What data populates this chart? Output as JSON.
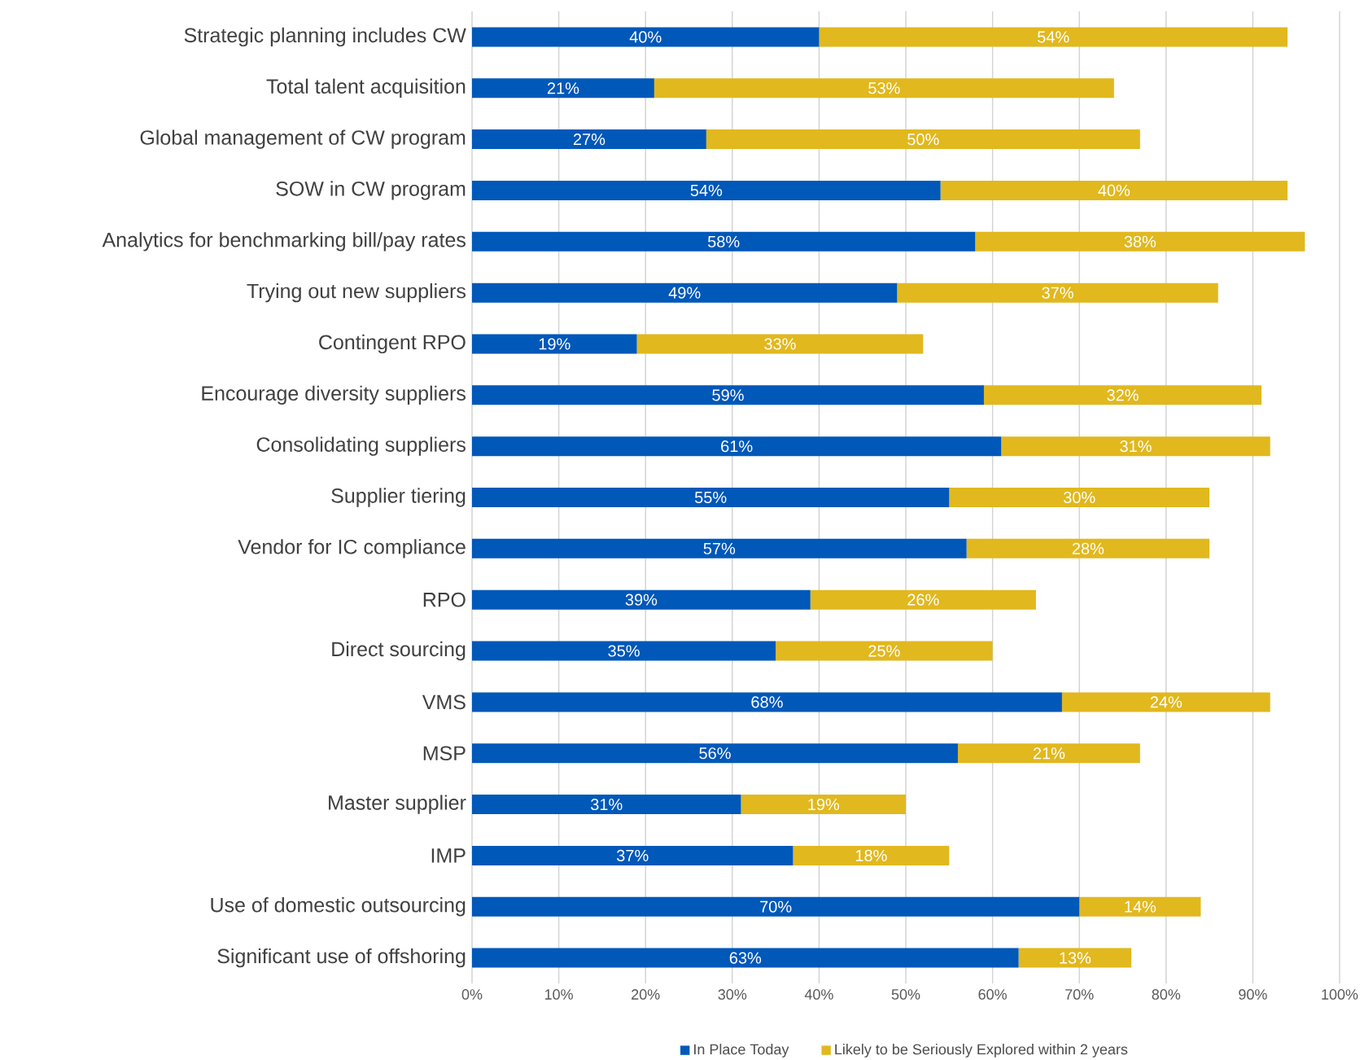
{
  "chart_data": {
    "type": "bar",
    "orientation": "horizontal",
    "stacked": true,
    "categories": [
      "Strategic planning includes CW",
      "Total talent acquisition",
      "Global management of CW program",
      "SOW in CW program",
      "Analytics for benchmarking bill/pay rates",
      "Trying out new suppliers",
      "Contingent RPO",
      "Encourage diversity suppliers",
      "Consolidating suppliers",
      "Supplier tiering",
      "Vendor for IC compliance",
      "RPO",
      "Direct sourcing",
      "VMS",
      "MSP",
      "Master supplier",
      "IMP",
      "Use of domestic outsourcing",
      "Significant use of offshoring"
    ],
    "series": [
      {
        "name": "In Place Today",
        "color": "#0058b9",
        "values": [
          40,
          21,
          27,
          54,
          58,
          49,
          19,
          59,
          61,
          55,
          57,
          39,
          35,
          68,
          56,
          31,
          37,
          70,
          63
        ],
        "value_labels": [
          "40%",
          "21%",
          "27%",
          "54%",
          "58%",
          "49%",
          "19%",
          "59%",
          "61%",
          "55%",
          "57%",
          "39%",
          "35%",
          "68%",
          "56%",
          "31%",
          "37%",
          "70%",
          "63%"
        ]
      },
      {
        "name": "Likely to be Seriously Explored within 2 years",
        "color": "#e1b81e",
        "values": [
          54,
          53,
          50,
          40,
          38,
          37,
          33,
          32,
          31,
          30,
          28,
          26,
          25,
          24,
          21,
          19,
          18,
          14,
          13
        ],
        "value_labels": [
          "54%",
          "53%",
          "50%",
          "40%",
          "38%",
          "37%",
          "33%",
          "32%",
          "31%",
          "30%",
          "28%",
          "26%",
          "25%",
          "24%",
          "21%",
          "19%",
          "18%",
          "14%",
          "13%"
        ]
      }
    ],
    "xlim": [
      0,
      100
    ],
    "xticks": [
      {
        "value": 0,
        "label": "0%"
      },
      {
        "value": 10,
        "label": "10%"
      },
      {
        "value": 20,
        "label": "20%"
      },
      {
        "value": 30,
        "label": "30%"
      },
      {
        "value": 40,
        "label": "40%"
      },
      {
        "value": 50,
        "label": "50%"
      },
      {
        "value": 60,
        "label": "60%"
      },
      {
        "value": 70,
        "label": "70%"
      },
      {
        "value": 80,
        "label": "80%"
      },
      {
        "value": 90,
        "label": "90%"
      },
      {
        "value": 100,
        "label": "100%"
      }
    ],
    "grid": "x",
    "legend": "bottom"
  }
}
